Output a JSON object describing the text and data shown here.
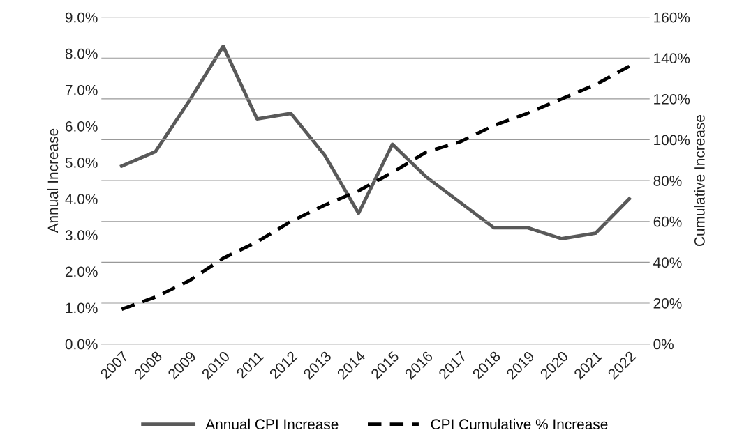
{
  "chart_data": {
    "type": "line",
    "categories": [
      "2007",
      "2008",
      "2009",
      "2010",
      "2011",
      "2012",
      "2013",
      "2014",
      "2015",
      "2016",
      "2017",
      "2018",
      "2019",
      "2020",
      "2021",
      "2022"
    ],
    "series": [
      {
        "name": "Annual CPI Increase",
        "color": "#595959",
        "line_style": "solid",
        "values": [
          4.9,
          5.3,
          6.7,
          8.2,
          6.2,
          6.35,
          5.2,
          3.6,
          5.5,
          4.6,
          3.9,
          3.2,
          3.2,
          2.9,
          3.05,
          4.0
        ]
      },
      {
        "name": "CPI Cumulative % Increase",
        "color": "#000000",
        "line_style": "dashed",
        "axis": "y2",
        "values": [
          17,
          23,
          31,
          42,
          50,
          60,
          68,
          75,
          84,
          94,
          99,
          107,
          113,
          120,
          127,
          136
        ]
      }
    ],
    "ylabel": "Annual Increase",
    "y2label": "Cumulative Increase",
    "ylim": [
      0,
      9
    ],
    "yticks": [
      {
        "value": 0,
        "label": "0.0%"
      },
      {
        "value": 1,
        "label": "1.0%"
      },
      {
        "value": 2,
        "label": "2.0%"
      },
      {
        "value": 3,
        "label": "3.0%"
      },
      {
        "value": 4,
        "label": "4.0%"
      },
      {
        "value": 5,
        "label": "5.0%"
      },
      {
        "value": 6,
        "label": "6.0%"
      },
      {
        "value": 7,
        "label": "7.0%"
      },
      {
        "value": 8,
        "label": "8.0%"
      },
      {
        "value": 9,
        "label": "9.0%"
      }
    ],
    "y2lim": [
      0,
      160
    ],
    "y2ticks": [
      {
        "value": 0,
        "label": "0%"
      },
      {
        "value": 20,
        "label": "20%"
      },
      {
        "value": 40,
        "label": "40%"
      },
      {
        "value": 60,
        "label": "60%"
      },
      {
        "value": 80,
        "label": "80%"
      },
      {
        "value": 100,
        "label": "100%"
      },
      {
        "value": 120,
        "label": "120%"
      },
      {
        "value": 140,
        "label": "140%"
      },
      {
        "value": 160,
        "label": "160%"
      }
    ],
    "grid": "y2",
    "legend": "bottom",
    "marker": "none"
  }
}
